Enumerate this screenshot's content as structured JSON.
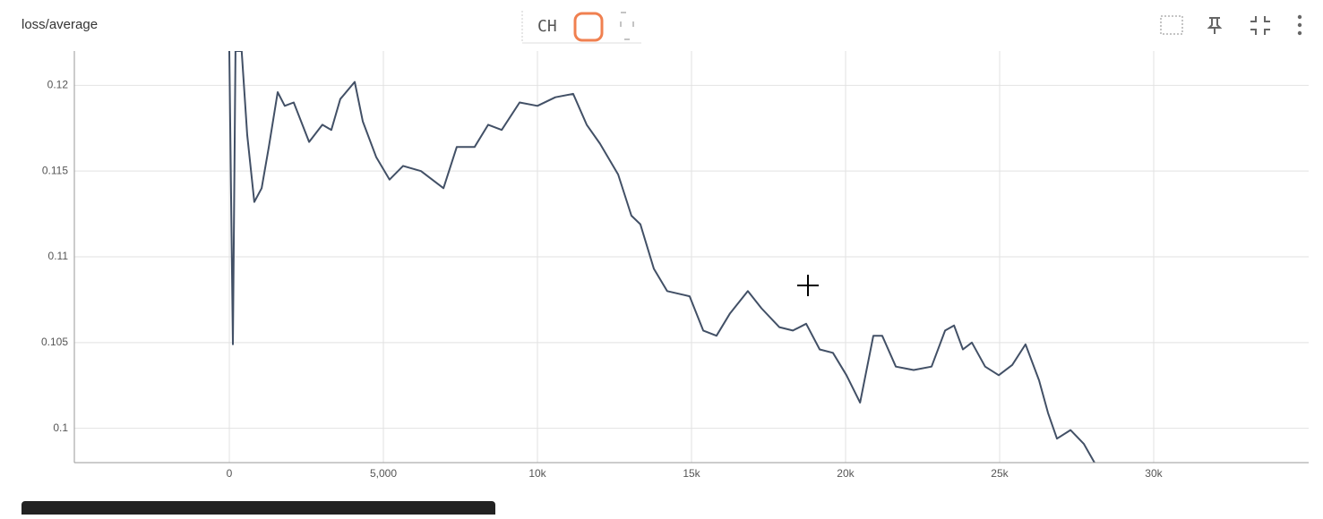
{
  "chart_data": {
    "type": "line",
    "title": "loss/average",
    "x": [
      0,
      116,
      200,
      400,
      580,
      810,
      1050,
      1280,
      1570,
      1800,
      2090,
      2590,
      3020,
      3310,
      3600,
      4070,
      4330,
      4770,
      5200,
      5640,
      6220,
      6950,
      7380,
      7960,
      8400,
      8840,
      9420,
      10000,
      10580,
      11160,
      11600,
      12030,
      12620,
      13050,
      13340,
      13780,
      14210,
      14940,
      15380,
      15810,
      16250,
      16830,
      17270,
      17850,
      18290,
      18720,
      19160,
      19590,
      20030,
      20470,
      20900,
      21190,
      21630,
      22210,
      22790,
      23230,
      23520,
      23810,
      24100,
      24530,
      24970,
      25410,
      25840,
      26280,
      26570,
      26860,
      27300,
      27730,
      28080
    ],
    "values": [
      0.122,
      0.1049,
      0.122,
      0.122,
      0.1171,
      0.1132,
      0.114,
      0.1164,
      0.1196,
      0.1188,
      0.119,
      0.1167,
      0.1177,
      0.1174,
      0.1192,
      0.1202,
      0.1179,
      0.1158,
      0.1145,
      0.1153,
      0.115,
      0.114,
      0.1164,
      0.1164,
      0.1177,
      0.1174,
      0.119,
      0.1188,
      0.1193,
      0.1195,
      0.1177,
      0.1166,
      0.1148,
      0.1124,
      0.1119,
      0.1093,
      0.108,
      0.1077,
      0.1057,
      0.1054,
      0.1067,
      0.108,
      0.107,
      0.1059,
      0.1057,
      0.1061,
      0.1046,
      0.1044,
      0.1031,
      0.1015,
      0.1054,
      0.1054,
      0.1036,
      0.1034,
      0.1036,
      0.1057,
      0.106,
      0.1046,
      0.105,
      0.1036,
      0.1031,
      0.1037,
      0.1049,
      0.1028,
      0.1009,
      0.0994,
      0.0999,
      0.0991,
      0.098
    ],
    "color": "#425066",
    "xlim": [
      -5030,
      35030
    ],
    "xticks": [
      0,
      {
        "value": 5000,
        "label": "5,000"
      },
      {
        "value": 10000,
        "label": "10k"
      },
      {
        "value": 15000,
        "label": "15k"
      },
      {
        "value": 20000,
        "label": "20k"
      },
      {
        "value": 25000,
        "label": "25k"
      },
      {
        "value": 30000,
        "label": "30k"
      }
    ],
    "ylim": [
      0.098,
      0.122
    ],
    "yticks": [
      0.1,
      0.105,
      0.11,
      0.115,
      0.12
    ],
    "grid": true,
    "toolbar_badge": "CH"
  }
}
